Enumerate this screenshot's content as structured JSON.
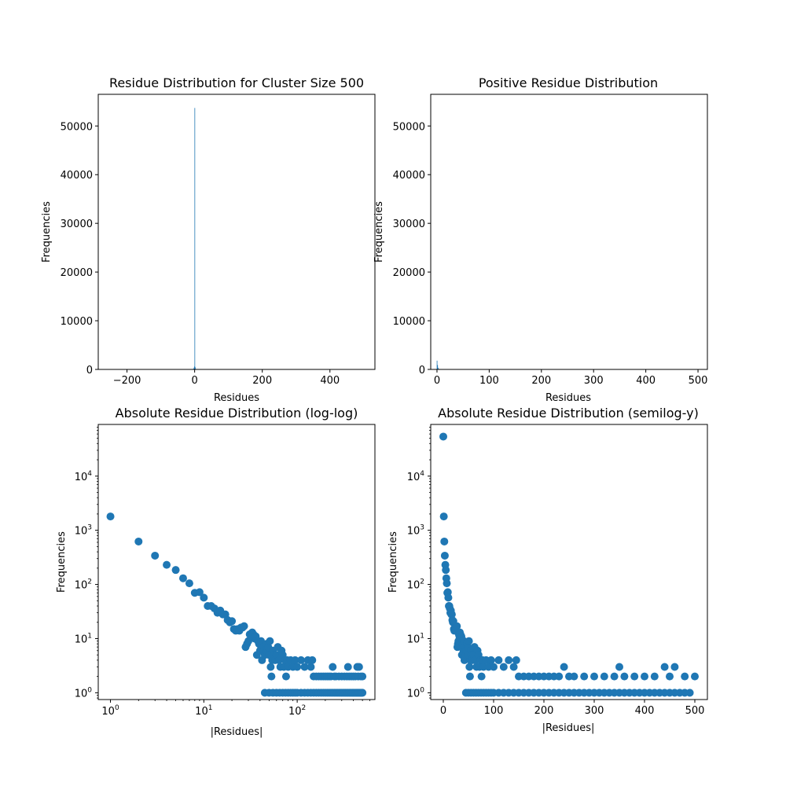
{
  "chart_data": [
    {
      "type": "bar",
      "title": "Residue Distribution for Cluster Size 500",
      "xlabel": "Residues",
      "ylabel": "Frequencies",
      "xlim": [
        -285,
        533
      ],
      "ylim": [
        0,
        56500
      ],
      "x_ticks": [
        -200,
        0,
        200,
        400
      ],
      "y_ticks": [
        0,
        10000,
        20000,
        30000,
        40000,
        50000
      ],
      "bars": [
        {
          "x": -6,
          "y": 60
        },
        {
          "x": -4,
          "y": 150
        },
        {
          "x": -2,
          "y": 400
        },
        {
          "x": -1,
          "y": 600
        },
        {
          "x": 0,
          "y": 53700
        },
        {
          "x": 1,
          "y": 500
        },
        {
          "x": 2,
          "y": 200
        },
        {
          "x": 4,
          "y": 80
        }
      ],
      "color": "#1f77b4",
      "grid": false
    },
    {
      "type": "bar",
      "title": "Positive Residue Distribution",
      "xlabel": "Residues",
      "ylabel": "Frequencies",
      "xlim": [
        -12,
        518
      ],
      "ylim": [
        0,
        56500
      ],
      "x_ticks": [
        0,
        100,
        200,
        300,
        400,
        500
      ],
      "y_ticks": [
        0,
        10000,
        20000,
        30000,
        40000,
        50000
      ],
      "bars": [
        {
          "x": 0,
          "y": 1800
        },
        {
          "x": 1,
          "y": 900
        },
        {
          "x": 2,
          "y": 350
        },
        {
          "x": 4,
          "y": 120
        },
        {
          "x": 7,
          "y": 40
        }
      ],
      "color": "#1f77b4",
      "grid": false
    },
    {
      "type": "scatter",
      "title": "Absolute Residue Distribution (log-log)",
      "xlabel": "|Residues|",
      "ylabel": "Frequencies",
      "xscale": "log",
      "yscale": "log",
      "xlim": [
        0.74,
        680
      ],
      "ylim": [
        0.75,
        90000
      ],
      "x_ticks": [
        {
          "value": 1,
          "base": "10",
          "exp": "0"
        },
        {
          "value": 10,
          "base": "10",
          "exp": "1"
        },
        {
          "value": 100,
          "base": "10",
          "exp": "2"
        }
      ],
      "y_ticks": [
        {
          "value": 1,
          "base": "10",
          "exp": "0"
        },
        {
          "value": 10,
          "base": "10",
          "exp": "1"
        },
        {
          "value": 100,
          "base": "10",
          "exp": "2"
        },
        {
          "value": 1000,
          "base": "10",
          "exp": "3"
        },
        {
          "value": 10000,
          "base": "10",
          "exp": "4"
        }
      ],
      "points": [
        [
          1,
          1800
        ],
        [
          2,
          620
        ],
        [
          3,
          340
        ],
        [
          4,
          230
        ],
        [
          5,
          185
        ],
        [
          6,
          130
        ],
        [
          7,
          105
        ],
        [
          8,
          70
        ],
        [
          9,
          72
        ],
        [
          10,
          57
        ],
        [
          11,
          40
        ],
        [
          12,
          40
        ],
        [
          13,
          36
        ],
        [
          14,
          30
        ],
        [
          15,
          33
        ],
        [
          16,
          28
        ],
        [
          17,
          28
        ],
        [
          18,
          22
        ],
        [
          19,
          20
        ],
        [
          20,
          21
        ],
        [
          21,
          15
        ],
        [
          22,
          14
        ],
        [
          23,
          15
        ],
        [
          24,
          14
        ],
        [
          25,
          16
        ],
        [
          26,
          16
        ],
        [
          27,
          17
        ],
        [
          28,
          7
        ],
        [
          29,
          8
        ],
        [
          30,
          9
        ],
        [
          31,
          12
        ],
        [
          32,
          11
        ],
        [
          33,
          13
        ],
        [
          34,
          12
        ],
        [
          35,
          10
        ],
        [
          36,
          11
        ],
        [
          37,
          5
        ],
        [
          38,
          9
        ],
        [
          39,
          8
        ],
        [
          40,
          6
        ],
        [
          41,
          9
        ],
        [
          42,
          4
        ],
        [
          43,
          7
        ],
        [
          44,
          6
        ],
        [
          45,
          5
        ],
        [
          46,
          6
        ],
        [
          47,
          8
        ],
        [
          48,
          6
        ],
        [
          49,
          7
        ],
        [
          50,
          5
        ],
        [
          51,
          9
        ],
        [
          52,
          3
        ],
        [
          53,
          2
        ],
        [
          54,
          4
        ],
        [
          55,
          6
        ],
        [
          56,
          5
        ],
        [
          58,
          4
        ],
        [
          60,
          5
        ],
        [
          62,
          7
        ],
        [
          64,
          4
        ],
        [
          66,
          3
        ],
        [
          68,
          6
        ],
        [
          70,
          5
        ],
        [
          72,
          3
        ],
        [
          74,
          4
        ],
        [
          76,
          2
        ],
        [
          78,
          4
        ],
        [
          80,
          3
        ],
        [
          85,
          4
        ],
        [
          90,
          3
        ],
        [
          95,
          4
        ],
        [
          100,
          3
        ],
        [
          110,
          4
        ],
        [
          120,
          3
        ],
        [
          130,
          4
        ],
        [
          140,
          3
        ],
        [
          145,
          4
        ],
        [
          150,
          2
        ],
        [
          160,
          2
        ],
        [
          170,
          2
        ],
        [
          180,
          2
        ],
        [
          190,
          2
        ],
        [
          200,
          2
        ],
        [
          210,
          2
        ],
        [
          220,
          2
        ],
        [
          230,
          2
        ],
        [
          240,
          3
        ],
        [
          250,
          2
        ],
        [
          260,
          2
        ],
        [
          280,
          2
        ],
        [
          300,
          2
        ],
        [
          320,
          2
        ],
        [
          340,
          2
        ],
        [
          350,
          3
        ],
        [
          360,
          2
        ],
        [
          380,
          2
        ],
        [
          400,
          2
        ],
        [
          420,
          2
        ],
        [
          440,
          3
        ],
        [
          450,
          2
        ],
        [
          460,
          3
        ],
        [
          480,
          2
        ],
        [
          500,
          2
        ],
        [
          45,
          1
        ],
        [
          50,
          1
        ],
        [
          55,
          1
        ],
        [
          60,
          1
        ],
        [
          65,
          1
        ],
        [
          70,
          1
        ],
        [
          75,
          1
        ],
        [
          80,
          1
        ],
        [
          85,
          1
        ],
        [
          90,
          1
        ],
        [
          95,
          1
        ],
        [
          100,
          1
        ],
        [
          110,
          1
        ],
        [
          120,
          1
        ],
        [
          130,
          1
        ],
        [
          140,
          1
        ],
        [
          150,
          1
        ],
        [
          160,
          1
        ],
        [
          170,
          1
        ],
        [
          180,
          1
        ],
        [
          190,
          1
        ],
        [
          200,
          1
        ],
        [
          210,
          1
        ],
        [
          220,
          1
        ],
        [
          230,
          1
        ],
        [
          240,
          1
        ],
        [
          250,
          1
        ],
        [
          260,
          1
        ],
        [
          270,
          1
        ],
        [
          280,
          1
        ],
        [
          290,
          1
        ],
        [
          300,
          1
        ],
        [
          310,
          1
        ],
        [
          320,
          1
        ],
        [
          330,
          1
        ],
        [
          340,
          1
        ],
        [
          350,
          1
        ],
        [
          360,
          1
        ],
        [
          370,
          1
        ],
        [
          380,
          1
        ],
        [
          390,
          1
        ],
        [
          400,
          1
        ],
        [
          410,
          1
        ],
        [
          420,
          1
        ],
        [
          430,
          1
        ],
        [
          440,
          1
        ],
        [
          450,
          1
        ],
        [
          460,
          1
        ],
        [
          470,
          1
        ],
        [
          480,
          1
        ],
        [
          490,
          1
        ],
        [
          500,
          1
        ]
      ],
      "color": "#1f77b4",
      "grid": false
    },
    {
      "type": "scatter",
      "title": "Absolute Residue Distribution (semilog-y)",
      "xlabel": "|Residues|",
      "ylabel": "Frequencies",
      "xscale": "linear",
      "yscale": "log",
      "xlim": [
        -25,
        525
      ],
      "ylim": [
        0.75,
        90000
      ],
      "x_ticks": [
        {
          "value": 0,
          "label": "0"
        },
        {
          "value": 100,
          "label": "100"
        },
        {
          "value": 200,
          "label": "200"
        },
        {
          "value": 300,
          "label": "300"
        },
        {
          "value": 400,
          "label": "400"
        },
        {
          "value": 500,
          "label": "500"
        }
      ],
      "y_ticks": [
        {
          "value": 1,
          "base": "10",
          "exp": "0"
        },
        {
          "value": 10,
          "base": "10",
          "exp": "1"
        },
        {
          "value": 100,
          "base": "10",
          "exp": "2"
        },
        {
          "value": 1000,
          "base": "10",
          "exp": "3"
        },
        {
          "value": 10000,
          "base": "10",
          "exp": "4"
        }
      ],
      "points": [
        [
          0,
          53700
        ],
        [
          1,
          1800
        ],
        [
          2,
          620
        ],
        [
          3,
          340
        ],
        [
          4,
          230
        ],
        [
          5,
          185
        ],
        [
          6,
          130
        ],
        [
          7,
          105
        ],
        [
          8,
          70
        ],
        [
          9,
          72
        ],
        [
          10,
          57
        ],
        [
          11,
          40
        ],
        [
          12,
          40
        ],
        [
          13,
          36
        ],
        [
          14,
          30
        ],
        [
          15,
          33
        ],
        [
          16,
          28
        ],
        [
          17,
          28
        ],
        [
          18,
          22
        ],
        [
          19,
          20
        ],
        [
          20,
          21
        ],
        [
          21,
          15
        ],
        [
          22,
          14
        ],
        [
          23,
          15
        ],
        [
          24,
          14
        ],
        [
          25,
          16
        ],
        [
          26,
          16
        ],
        [
          27,
          17
        ],
        [
          28,
          7
        ],
        [
          29,
          8
        ],
        [
          30,
          9
        ],
        [
          31,
          12
        ],
        [
          32,
          11
        ],
        [
          33,
          13
        ],
        [
          34,
          12
        ],
        [
          35,
          10
        ],
        [
          36,
          11
        ],
        [
          37,
          5
        ],
        [
          38,
          9
        ],
        [
          39,
          8
        ],
        [
          40,
          6
        ],
        [
          41,
          9
        ],
        [
          42,
          4
        ],
        [
          43,
          7
        ],
        [
          44,
          6
        ],
        [
          45,
          5
        ],
        [
          46,
          6
        ],
        [
          47,
          8
        ],
        [
          48,
          6
        ],
        [
          49,
          7
        ],
        [
          50,
          5
        ],
        [
          51,
          9
        ],
        [
          52,
          3
        ],
        [
          53,
          2
        ],
        [
          54,
          4
        ],
        [
          55,
          6
        ],
        [
          56,
          5
        ],
        [
          58,
          4
        ],
        [
          60,
          5
        ],
        [
          62,
          7
        ],
        [
          64,
          4
        ],
        [
          66,
          3
        ],
        [
          68,
          6
        ],
        [
          70,
          5
        ],
        [
          72,
          3
        ],
        [
          74,
          4
        ],
        [
          76,
          2
        ],
        [
          78,
          4
        ],
        [
          80,
          3
        ],
        [
          85,
          4
        ],
        [
          90,
          3
        ],
        [
          95,
          4
        ],
        [
          100,
          3
        ],
        [
          110,
          4
        ],
        [
          120,
          3
        ],
        [
          130,
          4
        ],
        [
          140,
          3
        ],
        [
          145,
          4
        ],
        [
          150,
          2
        ],
        [
          160,
          2
        ],
        [
          170,
          2
        ],
        [
          180,
          2
        ],
        [
          190,
          2
        ],
        [
          200,
          2
        ],
        [
          210,
          2
        ],
        [
          220,
          2
        ],
        [
          230,
          2
        ],
        [
          240,
          3
        ],
        [
          250,
          2
        ],
        [
          260,
          2
        ],
        [
          280,
          2
        ],
        [
          300,
          2
        ],
        [
          320,
          2
        ],
        [
          340,
          2
        ],
        [
          350,
          3
        ],
        [
          360,
          2
        ],
        [
          380,
          2
        ],
        [
          400,
          2
        ],
        [
          420,
          2
        ],
        [
          440,
          3
        ],
        [
          450,
          2
        ],
        [
          460,
          3
        ],
        [
          480,
          2
        ],
        [
          500,
          2
        ],
        [
          45,
          1
        ],
        [
          50,
          1
        ],
        [
          55,
          1
        ],
        [
          60,
          1
        ],
        [
          65,
          1
        ],
        [
          70,
          1
        ],
        [
          75,
          1
        ],
        [
          80,
          1
        ],
        [
          85,
          1
        ],
        [
          90,
          1
        ],
        [
          95,
          1
        ],
        [
          100,
          1
        ],
        [
          110,
          1
        ],
        [
          120,
          1
        ],
        [
          130,
          1
        ],
        [
          140,
          1
        ],
        [
          150,
          1
        ],
        [
          160,
          1
        ],
        [
          170,
          1
        ],
        [
          180,
          1
        ],
        [
          190,
          1
        ],
        [
          200,
          1
        ],
        [
          210,
          1
        ],
        [
          220,
          1
        ],
        [
          230,
          1
        ],
        [
          240,
          1
        ],
        [
          250,
          1
        ],
        [
          260,
          1
        ],
        [
          270,
          1
        ],
        [
          280,
          1
        ],
        [
          290,
          1
        ],
        [
          300,
          1
        ],
        [
          310,
          1
        ],
        [
          320,
          1
        ],
        [
          330,
          1
        ],
        [
          340,
          1
        ],
        [
          350,
          1
        ],
        [
          360,
          1
        ],
        [
          370,
          1
        ],
        [
          380,
          1
        ],
        [
          390,
          1
        ],
        [
          400,
          1
        ],
        [
          410,
          1
        ],
        [
          420,
          1
        ],
        [
          430,
          1
        ],
        [
          440,
          1
        ],
        [
          450,
          1
        ],
        [
          460,
          1
        ],
        [
          470,
          1
        ],
        [
          480,
          1
        ],
        [
          490,
          1
        ]
      ],
      "color": "#1f77b4",
      "grid": false
    }
  ]
}
